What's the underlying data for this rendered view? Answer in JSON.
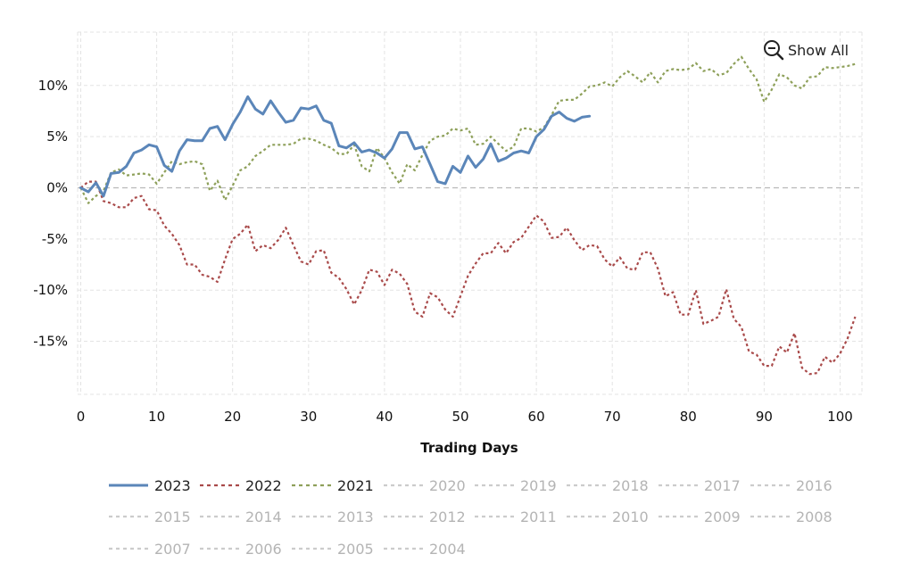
{
  "controls": {
    "show_all_label": "Show All"
  },
  "chart_data": {
    "type": "line",
    "title": "",
    "xlabel": "Trading Days",
    "ylabel": "",
    "xlim": [
      0,
      103
    ],
    "ylim": [
      -20,
      15.5
    ],
    "x_ticks": [
      0,
      10,
      20,
      30,
      40,
      50,
      60,
      70,
      80,
      90,
      100
    ],
    "y_ticks": [
      10,
      5,
      0,
      -5,
      -10,
      -15
    ],
    "y_tick_labels": [
      "10%",
      "5%",
      "0%",
      "-5%",
      "-10%",
      "-15%"
    ],
    "grid": true,
    "legend_position": "bottom",
    "legend": [
      {
        "label": "2023",
        "color": "#5b86b9",
        "style": "solid",
        "active": true
      },
      {
        "label": "2022",
        "color": "#a94a4a",
        "style": "dashed",
        "active": true
      },
      {
        "label": "2021",
        "color": "#8ea05a",
        "style": "dashed",
        "active": true
      },
      {
        "label": "2020",
        "color": "#cccccc",
        "style": "dashed",
        "active": false
      },
      {
        "label": "2019",
        "color": "#cccccc",
        "style": "dashed",
        "active": false
      },
      {
        "label": "2018",
        "color": "#cccccc",
        "style": "dashed",
        "active": false
      },
      {
        "label": "2017",
        "color": "#cccccc",
        "style": "dashed",
        "active": false
      },
      {
        "label": "2016",
        "color": "#cccccc",
        "style": "dashed",
        "active": false
      },
      {
        "label": "2015",
        "color": "#cccccc",
        "style": "dashed",
        "active": false
      },
      {
        "label": "2014",
        "color": "#cccccc",
        "style": "dashed",
        "active": false
      },
      {
        "label": "2013",
        "color": "#cccccc",
        "style": "dashed",
        "active": false
      },
      {
        "label": "2012",
        "color": "#cccccc",
        "style": "dashed",
        "active": false
      },
      {
        "label": "2011",
        "color": "#cccccc",
        "style": "dashed",
        "active": false
      },
      {
        "label": "2010",
        "color": "#cccccc",
        "style": "dashed",
        "active": false
      },
      {
        "label": "2009",
        "color": "#cccccc",
        "style": "dashed",
        "active": false
      },
      {
        "label": "2008",
        "color": "#cccccc",
        "style": "dashed",
        "active": false
      },
      {
        "label": "2007",
        "color": "#cccccc",
        "style": "dashed",
        "active": false
      },
      {
        "label": "2006",
        "color": "#cccccc",
        "style": "dashed",
        "active": false
      },
      {
        "label": "2005",
        "color": "#cccccc",
        "style": "dashed",
        "active": false
      },
      {
        "label": "2004",
        "color": "#cccccc",
        "style": "dashed",
        "active": false
      }
    ],
    "series": [
      {
        "name": "2023",
        "x": [
          0,
          1,
          2,
          3,
          4,
          5,
          6,
          7,
          8,
          9,
          10,
          11,
          12,
          13,
          14,
          15,
          16,
          17,
          18,
          19,
          20,
          21,
          22,
          23,
          24,
          25,
          26,
          27,
          28,
          29,
          30,
          31,
          32,
          33,
          34,
          35,
          36,
          37,
          38,
          39,
          40,
          41,
          42,
          43,
          44,
          45,
          46,
          47,
          48,
          49,
          50,
          51,
          52,
          53,
          54,
          55,
          56,
          57,
          58,
          59,
          60,
          61,
          62,
          63,
          64,
          65,
          66,
          67
        ],
        "values": [
          0,
          -0.4,
          0.5,
          -0.8,
          1.4,
          1.5,
          2.1,
          3.4,
          3.7,
          4.2,
          4.0,
          2.2,
          1.6,
          3.6,
          4.7,
          4.6,
          4.6,
          5.8,
          6.0,
          4.7,
          6.2,
          7.4,
          8.9,
          7.7,
          7.2,
          8.5,
          7.4,
          6.4,
          6.6,
          7.8,
          7.7,
          8.0,
          6.6,
          6.3,
          4.1,
          3.9,
          4.4,
          3.5,
          3.7,
          3.4,
          2.9,
          3.8,
          5.4,
          5.4,
          3.8,
          4.0,
          2.3,
          0.6,
          0.4,
          2.1,
          1.5,
          3.1,
          2.0,
          2.8,
          4.3,
          2.6,
          2.9,
          3.4,
          3.6,
          3.4,
          5.0,
          5.7,
          7.0,
          7.4,
          6.8,
          6.5,
          6.9,
          7.0
        ]
      },
      {
        "name": "2022",
        "x": [
          0,
          1,
          2,
          3,
          4,
          5,
          6,
          7,
          8,
          9,
          10,
          11,
          12,
          13,
          14,
          15,
          16,
          17,
          18,
          19,
          20,
          21,
          22,
          23,
          24,
          25,
          26,
          27,
          28,
          29,
          30,
          31,
          32,
          33,
          34,
          35,
          36,
          37,
          38,
          39,
          40,
          41,
          42,
          43,
          44,
          45,
          46,
          47,
          48,
          49,
          50,
          51,
          52,
          53,
          54,
          55,
          56,
          57,
          58,
          59,
          60,
          61,
          62,
          63,
          64,
          65,
          66,
          67,
          68,
          69,
          70,
          71,
          72,
          73,
          74,
          75,
          76,
          77,
          78,
          79,
          80,
          81,
          82,
          83,
          84,
          85,
          86,
          87,
          88,
          89,
          90,
          91,
          92,
          93,
          94,
          95,
          96,
          97,
          98,
          99,
          100,
          101,
          102
        ],
        "values": [
          0,
          0.6,
          0.6,
          -1.3,
          -1.5,
          -1.9,
          -1.9,
          -1.0,
          -0.8,
          -2.1,
          -2.2,
          -3.7,
          -4.5,
          -5.6,
          -7.5,
          -7.5,
          -8.5,
          -8.7,
          -9.2,
          -7.0,
          -5.0,
          -4.5,
          -3.6,
          -6.2,
          -5.6,
          -5.9,
          -5.1,
          -3.9,
          -5.6,
          -7.2,
          -7.5,
          -6.2,
          -6.1,
          -8.3,
          -8.8,
          -9.9,
          -11.4,
          -10.0,
          -8.0,
          -8.2,
          -9.5,
          -8.0,
          -8.4,
          -9.4,
          -12.1,
          -12.6,
          -10.3,
          -10.7,
          -11.9,
          -12.6,
          -10.6,
          -8.6,
          -7.4,
          -6.4,
          -6.4,
          -5.4,
          -6.4,
          -5.3,
          -4.9,
          -3.8,
          -2.7,
          -3.3,
          -4.9,
          -4.8,
          -3.9,
          -5.1,
          -6.1,
          -5.6,
          -5.7,
          -7.0,
          -7.7,
          -6.8,
          -7.9,
          -8.0,
          -6.3,
          -6.3,
          -7.9,
          -10.6,
          -10.2,
          -12.4,
          -12.4,
          -10.0,
          -13.3,
          -13.0,
          -12.6,
          -9.9,
          -12.8,
          -13.6,
          -16.0,
          -16.3,
          -17.4,
          -17.4,
          -15.5,
          -16.1,
          -14.2,
          -17.6,
          -18.2,
          -18.1,
          -16.5,
          -17.1,
          -16.2,
          -14.7,
          -12.6
        ]
      },
      {
        "name": "2021",
        "x": [
          0,
          1,
          2,
          3,
          4,
          5,
          6,
          7,
          8,
          9,
          10,
          11,
          12,
          13,
          14,
          15,
          16,
          17,
          18,
          19,
          20,
          21,
          22,
          23,
          24,
          25,
          26,
          27,
          28,
          29,
          30,
          31,
          32,
          33,
          34,
          35,
          36,
          37,
          38,
          39,
          40,
          41,
          42,
          43,
          44,
          45,
          46,
          47,
          48,
          49,
          50,
          51,
          52,
          53,
          54,
          55,
          56,
          57,
          58,
          59,
          60,
          61,
          62,
          63,
          64,
          65,
          66,
          67,
          68,
          69,
          70,
          71,
          72,
          73,
          74,
          75,
          76,
          77,
          78,
          79,
          80,
          81,
          82,
          83,
          84,
          85,
          86,
          87,
          88,
          89,
          90,
          91,
          92,
          93,
          94,
          95,
          96,
          97,
          98,
          99,
          100,
          101,
          102
        ],
        "values": [
          0,
          -1.5,
          -0.8,
          -0.3,
          1.5,
          1.8,
          1.2,
          1.3,
          1.4,
          1.3,
          0.4,
          1.5,
          2.6,
          2.3,
          2.5,
          2.6,
          2.3,
          -0.3,
          0.7,
          -1.2,
          0.2,
          1.7,
          2.1,
          3.1,
          3.6,
          4.2,
          4.2,
          4.2,
          4.3,
          4.8,
          4.8,
          4.6,
          4.2,
          3.9,
          3.3,
          3.3,
          4.2,
          2.1,
          1.6,
          3.9,
          2.9,
          1.5,
          0.4,
          2.3,
          1.7,
          3.2,
          4.6,
          5.0,
          5.1,
          5.8,
          5.6,
          5.8,
          4.2,
          4.3,
          5.0,
          4.3,
          3.6,
          4.0,
          5.8,
          5.8,
          5.5,
          5.9,
          7.1,
          8.5,
          8.6,
          8.6,
          9.2,
          9.9,
          10.0,
          10.3,
          9.9,
          10.8,
          11.4,
          10.9,
          10.3,
          11.3,
          10.3,
          11.4,
          11.6,
          11.5,
          11.6,
          12.2,
          11.4,
          11.6,
          11.0,
          11.2,
          12.1,
          12.8,
          11.6,
          10.6,
          8.4,
          9.6,
          11.1,
          10.8,
          10.0,
          9.7,
          10.8,
          10.9,
          11.8,
          11.7,
          11.8,
          11.9,
          12.1
        ]
      }
    ]
  }
}
